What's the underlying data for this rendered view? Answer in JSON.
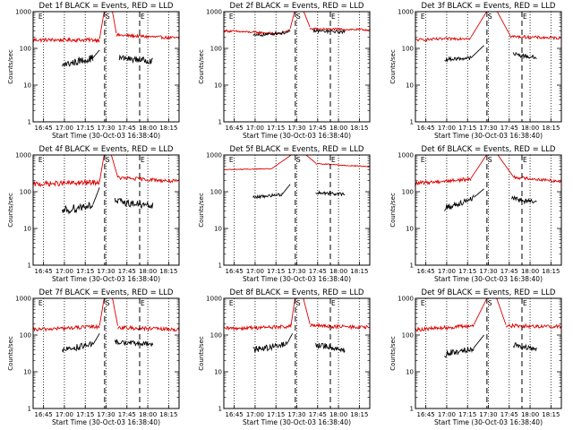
{
  "chart_data": [
    {
      "type": "line",
      "title": "Det 1f BLACK = Events, RED = LLD",
      "xlabel": "Start Time (30-Oct-03 16:38:40)",
      "ylabel": "Counts/sec",
      "yscale": "log",
      "ylim": [
        1,
        1000
      ],
      "xlim": [
        0,
        100
      ],
      "xticks": [
        "16:45",
        "17:00",
        "17:15",
        "17:30",
        "17:45",
        "18:00",
        "18:15"
      ],
      "yticks": [
        "1",
        "10",
        "100",
        "1000"
      ],
      "markers": [
        {
          "label": "E",
          "x": 3
        },
        {
          "label": "S",
          "x": 49
        },
        {
          "label": "E",
          "x": 73
        }
      ],
      "series": [
        {
          "color": "#dd0000",
          "segments": [
            {
              "x0": 0,
              "x1": 45.5,
              "start": 170,
              "end": 170,
              "noise": 0.05
            },
            {
              "x0": 45.5,
              "x1": 49,
              "start": 180,
              "end": 1200
            },
            {
              "x0": 54,
              "x1": 57,
              "start": 1200,
              "end": 260
            },
            {
              "x0": 57,
              "x1": 100,
              "start": 230,
              "end": 190,
              "noise": 0.04
            }
          ]
        },
        {
          "color": "#000000",
          "segments": [
            {
              "x0": 20,
              "x1": 41,
              "start": 35,
              "end": 55,
              "noise": 0.1
            },
            {
              "x0": 41,
              "x1": 45.5,
              "start": 55,
              "end": 90
            },
            {
              "x0": 59,
              "x1": 82,
              "start": 55,
              "end": 45,
              "noise": 0.08
            }
          ]
        }
      ]
    },
    {
      "type": "line",
      "title": "Det 2f BLACK = Events, RED = LLD",
      "xlabel": "Start Time (30-Oct-03 16:38:40)",
      "ylabel": "Counts/sec",
      "yscale": "log",
      "ylim": [
        1,
        1000
      ],
      "xlim": [
        0,
        100
      ],
      "xticks": [
        "16:45",
        "17:00",
        "17:15",
        "17:30",
        "17:45",
        "18:00",
        "18:15"
      ],
      "yticks": [
        "1",
        "10",
        "100",
        "1000"
      ],
      "markers": [
        {
          "label": "E",
          "x": 3
        },
        {
          "label": "S",
          "x": 49
        },
        {
          "label": "E",
          "x": 73
        }
      ],
      "series": [
        {
          "color": "#dd0000",
          "segments": [
            {
              "x0": 0,
              "x1": 40,
              "start": 300,
              "end": 250,
              "noise": 0.03
            },
            {
              "x0": 40,
              "x1": 45.5,
              "start": 260,
              "end": 330
            },
            {
              "x0": 45.5,
              "x1": 49,
              "start": 350,
              "end": 1200
            },
            {
              "x0": 54,
              "x1": 59,
              "start": 1200,
              "end": 380
            },
            {
              "x0": 59,
              "x1": 100,
              "start": 340,
              "end": 320,
              "noise": 0.03
            }
          ]
        },
        {
          "color": "#000000",
          "segments": [
            {
              "x0": 20,
              "x1": 45.5,
              "start": 220,
              "end": 280,
              "noise": 0.04
            },
            {
              "x0": 61,
              "x1": 83,
              "start": 300,
              "end": 280,
              "noise": 0.04
            }
          ]
        }
      ]
    },
    {
      "type": "line",
      "title": "Det 3f BLACK = Events, RED = LLD",
      "xlabel": "Start Time (30-Oct-03 16:38:40)",
      "ylabel": "Counts/sec",
      "yscale": "log",
      "ylim": [
        1,
        1000
      ],
      "xlim": [
        0,
        100
      ],
      "xticks": [
        "16:45",
        "17:00",
        "17:15",
        "17:30",
        "17:45",
        "18:00",
        "18:15"
      ],
      "yticks": [
        "1",
        "10",
        "100",
        "1000"
      ],
      "markers": [
        {
          "label": "E",
          "x": 3
        },
        {
          "label": "S",
          "x": 49
        },
        {
          "label": "E",
          "x": 73
        }
      ],
      "series": [
        {
          "color": "#dd0000",
          "segments": [
            {
              "x0": 0,
              "x1": 38,
              "start": 170,
              "end": 190,
              "noise": 0.04
            },
            {
              "x0": 38,
              "x1": 50,
              "start": 200,
              "end": 1200
            },
            {
              "x0": 55,
              "x1": 65,
              "start": 1200,
              "end": 220
            },
            {
              "x0": 65,
              "x1": 100,
              "start": 210,
              "end": 190,
              "noise": 0.04
            }
          ]
        },
        {
          "color": "#000000",
          "segments": [
            {
              "x0": 20,
              "x1": 38,
              "start": 50,
              "end": 55,
              "noise": 0.05
            },
            {
              "x0": 38,
              "x1": 47,
              "start": 55,
              "end": 120
            },
            {
              "x0": 67,
              "x1": 83,
              "start": 70,
              "end": 55,
              "noise": 0.06
            }
          ]
        }
      ]
    },
    {
      "type": "line",
      "title": "Det 4f BLACK = Events, RED = LLD",
      "xlabel": "Start Time (30-Oct-03 16:38:40)",
      "ylabel": "Counts/sec",
      "yscale": "log",
      "ylim": [
        1,
        1000
      ],
      "xlim": [
        0,
        100
      ],
      "xticks": [
        "16:45",
        "17:00",
        "17:15",
        "17:30",
        "17:45",
        "18:00",
        "18:15"
      ],
      "yticks": [
        "1",
        "10",
        "100",
        "1000"
      ],
      "markers": [
        {
          "label": "E",
          "x": 3
        },
        {
          "label": "S",
          "x": 49
        },
        {
          "label": "E",
          "x": 73
        }
      ],
      "series": [
        {
          "color": "#dd0000",
          "segments": [
            {
              "x0": 0,
              "x1": 45.5,
              "start": 160,
              "end": 180,
              "noise": 0.07
            },
            {
              "x0": 45.5,
              "x1": 49,
              "start": 190,
              "end": 1200
            },
            {
              "x0": 53,
              "x1": 58,
              "start": 1200,
              "end": 250
            },
            {
              "x0": 58,
              "x1": 100,
              "start": 240,
              "end": 190,
              "noise": 0.05
            }
          ]
        },
        {
          "color": "#000000",
          "segments": [
            {
              "x0": 20,
              "x1": 41,
              "start": 30,
              "end": 45,
              "noise": 0.12
            },
            {
              "x0": 41,
              "x1": 45.5,
              "start": 45,
              "end": 130
            },
            {
              "x0": 56,
              "x1": 82,
              "start": 55,
              "end": 40,
              "noise": 0.1
            }
          ]
        }
      ]
    },
    {
      "type": "line",
      "title": "Det 5f BLACK = Events, RED = LLD",
      "xlabel": "Start Time (30-Oct-03 16:38:40)",
      "ylabel": "Counts/sec",
      "yscale": "log",
      "ylim": [
        1,
        1000
      ],
      "xlim": [
        0,
        100
      ],
      "xticks": [
        "16:45",
        "17:00",
        "17:15",
        "17:30",
        "17:45",
        "18:00",
        "18:15"
      ],
      "yticks": [
        "1",
        "10",
        "100",
        "1000"
      ],
      "markers": [
        {
          "label": "E",
          "x": 3
        },
        {
          "label": "S",
          "x": 49
        },
        {
          "label": "E",
          "x": 73
        }
      ],
      "series": [
        {
          "color": "#dd0000",
          "segments": [
            {
              "x0": 0,
              "x1": 33,
              "start": 400,
              "end": 420,
              "noise": 0.01
            },
            {
              "x0": 33,
              "x1": 49,
              "start": 430,
              "end": 1200
            },
            {
              "x0": 54,
              "x1": 63,
              "start": 1200,
              "end": 600
            },
            {
              "x0": 63,
              "x1": 100,
              "start": 580,
              "end": 480,
              "noise": 0.015
            }
          ]
        },
        {
          "color": "#000000",
          "segments": [
            {
              "x0": 20,
              "x1": 40,
              "start": 70,
              "end": 85,
              "noise": 0.04
            },
            {
              "x0": 40,
              "x1": 45.5,
              "start": 85,
              "end": 160
            },
            {
              "x0": 63,
              "x1": 83,
              "start": 95,
              "end": 85,
              "noise": 0.04
            }
          ]
        }
      ]
    },
    {
      "type": "line",
      "title": "Det 6f BLACK = Events, RED = LLD",
      "xlabel": "Start Time (30-Oct-03 16:38:40)",
      "ylabel": "Counts/sec",
      "yscale": "log",
      "ylim": [
        1,
        1000
      ],
      "xlim": [
        0,
        100
      ],
      "xticks": [
        "16:45",
        "17:00",
        "17:15",
        "17:30",
        "17:45",
        "18:00",
        "18:15"
      ],
      "yticks": [
        "1",
        "10",
        "100",
        "1000"
      ],
      "markers": [
        {
          "label": "E",
          "x": 3
        },
        {
          "label": "S",
          "x": 49
        },
        {
          "label": "E",
          "x": 73
        }
      ],
      "series": [
        {
          "color": "#dd0000",
          "segments": [
            {
              "x0": 0,
              "x1": 38,
              "start": 170,
              "end": 220,
              "noise": 0.05
            },
            {
              "x0": 38,
              "x1": 50,
              "start": 230,
              "end": 1200
            },
            {
              "x0": 55,
              "x1": 67,
              "start": 1200,
              "end": 260
            },
            {
              "x0": 67,
              "x1": 100,
              "start": 250,
              "end": 190,
              "noise": 0.04
            }
          ]
        },
        {
          "color": "#000000",
          "segments": [
            {
              "x0": 20,
              "x1": 40,
              "start": 35,
              "end": 70,
              "noise": 0.09
            },
            {
              "x0": 40,
              "x1": 47,
              "start": 70,
              "end": 120
            },
            {
              "x0": 66,
              "x1": 83,
              "start": 65,
              "end": 50,
              "noise": 0.07
            }
          ]
        }
      ]
    },
    {
      "type": "line",
      "title": "Det 7f BLACK = Events, RED = LLD",
      "xlabel": "Start Time (30-Oct-03 16:38:40)",
      "ylabel": "Counts/sec",
      "yscale": "log",
      "ylim": [
        1,
        1000
      ],
      "xlim": [
        0,
        100
      ],
      "xticks": [
        "16:45",
        "17:00",
        "17:15",
        "17:30",
        "17:45",
        "18:00",
        "18:15"
      ],
      "yticks": [
        "1",
        "10",
        "100",
        "1000"
      ],
      "markers": [
        {
          "label": "E",
          "x": 3
        },
        {
          "label": "S",
          "x": 49
        },
        {
          "label": "E",
          "x": 73
        }
      ],
      "series": [
        {
          "color": "#dd0000",
          "segments": [
            {
              "x0": 0,
              "x1": 45.5,
              "start": 140,
              "end": 170,
              "noise": 0.05
            },
            {
              "x0": 45.5,
              "x1": 49,
              "start": 180,
              "end": 1200
            },
            {
              "x0": 54,
              "x1": 58,
              "start": 1200,
              "end": 180
            },
            {
              "x0": 58,
              "x1": 100,
              "start": 160,
              "end": 140,
              "noise": 0.05
            }
          ]
        },
        {
          "color": "#000000",
          "segments": [
            {
              "x0": 20,
              "x1": 41,
              "start": 40,
              "end": 55,
              "noise": 0.09
            },
            {
              "x0": 41,
              "x1": 45.5,
              "start": 55,
              "end": 110
            },
            {
              "x0": 56,
              "x1": 82,
              "start": 65,
              "end": 55,
              "noise": 0.07
            }
          ]
        }
      ]
    },
    {
      "type": "line",
      "title": "Det 8f BLACK = Events, RED = LLD",
      "xlabel": "Start Time (30-Oct-03 16:38:40)",
      "ylabel": "Counts/sec",
      "yscale": "log",
      "ylim": [
        1,
        1000
      ],
      "xlim": [
        0,
        100
      ],
      "xticks": [
        "16:45",
        "17:00",
        "17:15",
        "17:30",
        "17:45",
        "18:00",
        "18:15"
      ],
      "yticks": [
        "1",
        "10",
        "100",
        "1000"
      ],
      "markers": [
        {
          "label": "E",
          "x": 3
        },
        {
          "label": "S",
          "x": 49
        },
        {
          "label": "E",
          "x": 73
        }
      ],
      "series": [
        {
          "color": "#dd0000",
          "segments": [
            {
              "x0": 0,
              "x1": 46,
              "start": 150,
              "end": 170,
              "noise": 0.05
            },
            {
              "x0": 46,
              "x1": 49,
              "start": 180,
              "end": 1200
            },
            {
              "x0": 54,
              "x1": 59,
              "start": 1200,
              "end": 200
            },
            {
              "x0": 59,
              "x1": 100,
              "start": 180,
              "end": 160,
              "noise": 0.05
            }
          ]
        },
        {
          "color": "#000000",
          "segments": [
            {
              "x0": 20,
              "x1": 43,
              "start": 40,
              "end": 55,
              "noise": 0.09
            },
            {
              "x0": 43,
              "x1": 47,
              "start": 55,
              "end": 110
            },
            {
              "x0": 63,
              "x1": 83,
              "start": 55,
              "end": 40,
              "noise": 0.08
            }
          ]
        }
      ]
    },
    {
      "type": "line",
      "title": "Det 9f BLACK = Events, RED = LLD",
      "xlabel": "Start Time (30-Oct-03 16:38:40)",
      "ylabel": "Counts/sec",
      "yscale": "log",
      "ylim": [
        1,
        1000
      ],
      "xlim": [
        0,
        100
      ],
      "xticks": [
        "16:45",
        "17:00",
        "17:15",
        "17:30",
        "17:45",
        "18:00",
        "18:15"
      ],
      "yticks": [
        "1",
        "10",
        "100",
        "1000"
      ],
      "markers": [
        {
          "label": "E",
          "x": 3
        },
        {
          "label": "S",
          "x": 49
        },
        {
          "label": "E",
          "x": 73
        }
      ],
      "series": [
        {
          "color": "#dd0000",
          "segments": [
            {
              "x0": 0,
              "x1": 40,
              "start": 140,
              "end": 180,
              "noise": 0.05
            },
            {
              "x0": 40,
              "x1": 50,
              "start": 190,
              "end": 1200
            },
            {
              "x0": 55,
              "x1": 62,
              "start": 1200,
              "end": 190
            },
            {
              "x0": 62,
              "x1": 100,
              "start": 180,
              "end": 170,
              "noise": 0.05
            }
          ]
        },
        {
          "color": "#000000",
          "segments": [
            {
              "x0": 20,
              "x1": 40,
              "start": 30,
              "end": 45,
              "noise": 0.09
            },
            {
              "x0": 40,
              "x1": 47,
              "start": 45,
              "end": 100
            },
            {
              "x0": 67,
              "x1": 83,
              "start": 55,
              "end": 40,
              "noise": 0.07
            }
          ]
        }
      ]
    }
  ]
}
